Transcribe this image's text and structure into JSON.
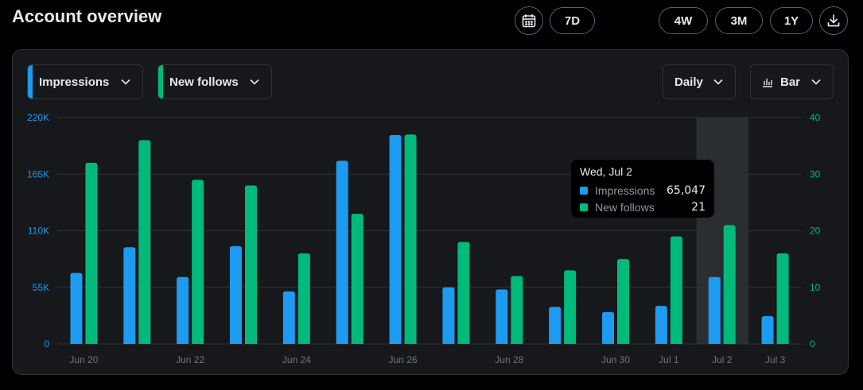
{
  "page": {
    "title": "Account overview"
  },
  "toolbar": {
    "calendar_icon": "calendar-icon",
    "range_7d": "7D",
    "range_4w": "4W",
    "range_3m": "3M",
    "range_1y": "1Y",
    "download_icon": "download-icon"
  },
  "controls": {
    "metric1": {
      "label": "Impressions",
      "color": "#1d9bf0"
    },
    "metric2": {
      "label": "New follows",
      "color": "#00ba7c"
    },
    "interval": {
      "label": "Daily"
    },
    "chart_type": {
      "label": "Bar",
      "icon": "bar-chart-icon"
    }
  },
  "tooltip": {
    "date": "Wed, Jul 2",
    "rows": [
      {
        "label": "Impressions",
        "value": "65,047",
        "color": "#1d9bf0"
      },
      {
        "label": "New follows",
        "value": "21",
        "color": "#00ba7c"
      }
    ]
  },
  "chart_data": {
    "type": "bar",
    "categories": [
      "Jun 20",
      "Jun 21",
      "Jun 22",
      "Jun 23",
      "Jun 24",
      "Jun 25",
      "Jun 26",
      "Jun 27",
      "Jun 28",
      "Jun 29",
      "Jun 30",
      "Jul 1",
      "Jul 2",
      "Jul 3"
    ],
    "x_tick_labels": [
      "Jun 20",
      "",
      "Jun 22",
      "",
      "Jun 24",
      "",
      "Jun 26",
      "",
      "Jun 28",
      "",
      "Jun 30",
      "Jul 1",
      "Jul 2",
      "Jul 3"
    ],
    "highlighted_category": "Jul 2",
    "series": [
      {
        "name": "Impressions",
        "axis": "left",
        "color": "#1d9bf0",
        "values": [
          69000,
          94000,
          65000,
          95000,
          51000,
          178000,
          203000,
          55000,
          53000,
          36000,
          31000,
          37000,
          65047,
          27000
        ]
      },
      {
        "name": "New follows",
        "axis": "right",
        "color": "#00ba7c",
        "values": [
          32,
          36,
          29,
          28,
          16,
          23,
          37,
          18,
          12,
          13,
          15,
          19,
          21,
          16
        ]
      }
    ],
    "y_left": {
      "ticks": [
        "0",
        "55K",
        "110K",
        "165K",
        "220K"
      ],
      "lim": [
        0,
        220000
      ]
    },
    "y_right": {
      "ticks": [
        "0",
        "10",
        "20",
        "30",
        "40"
      ],
      "lim": [
        0,
        40
      ]
    },
    "grid": true
  }
}
